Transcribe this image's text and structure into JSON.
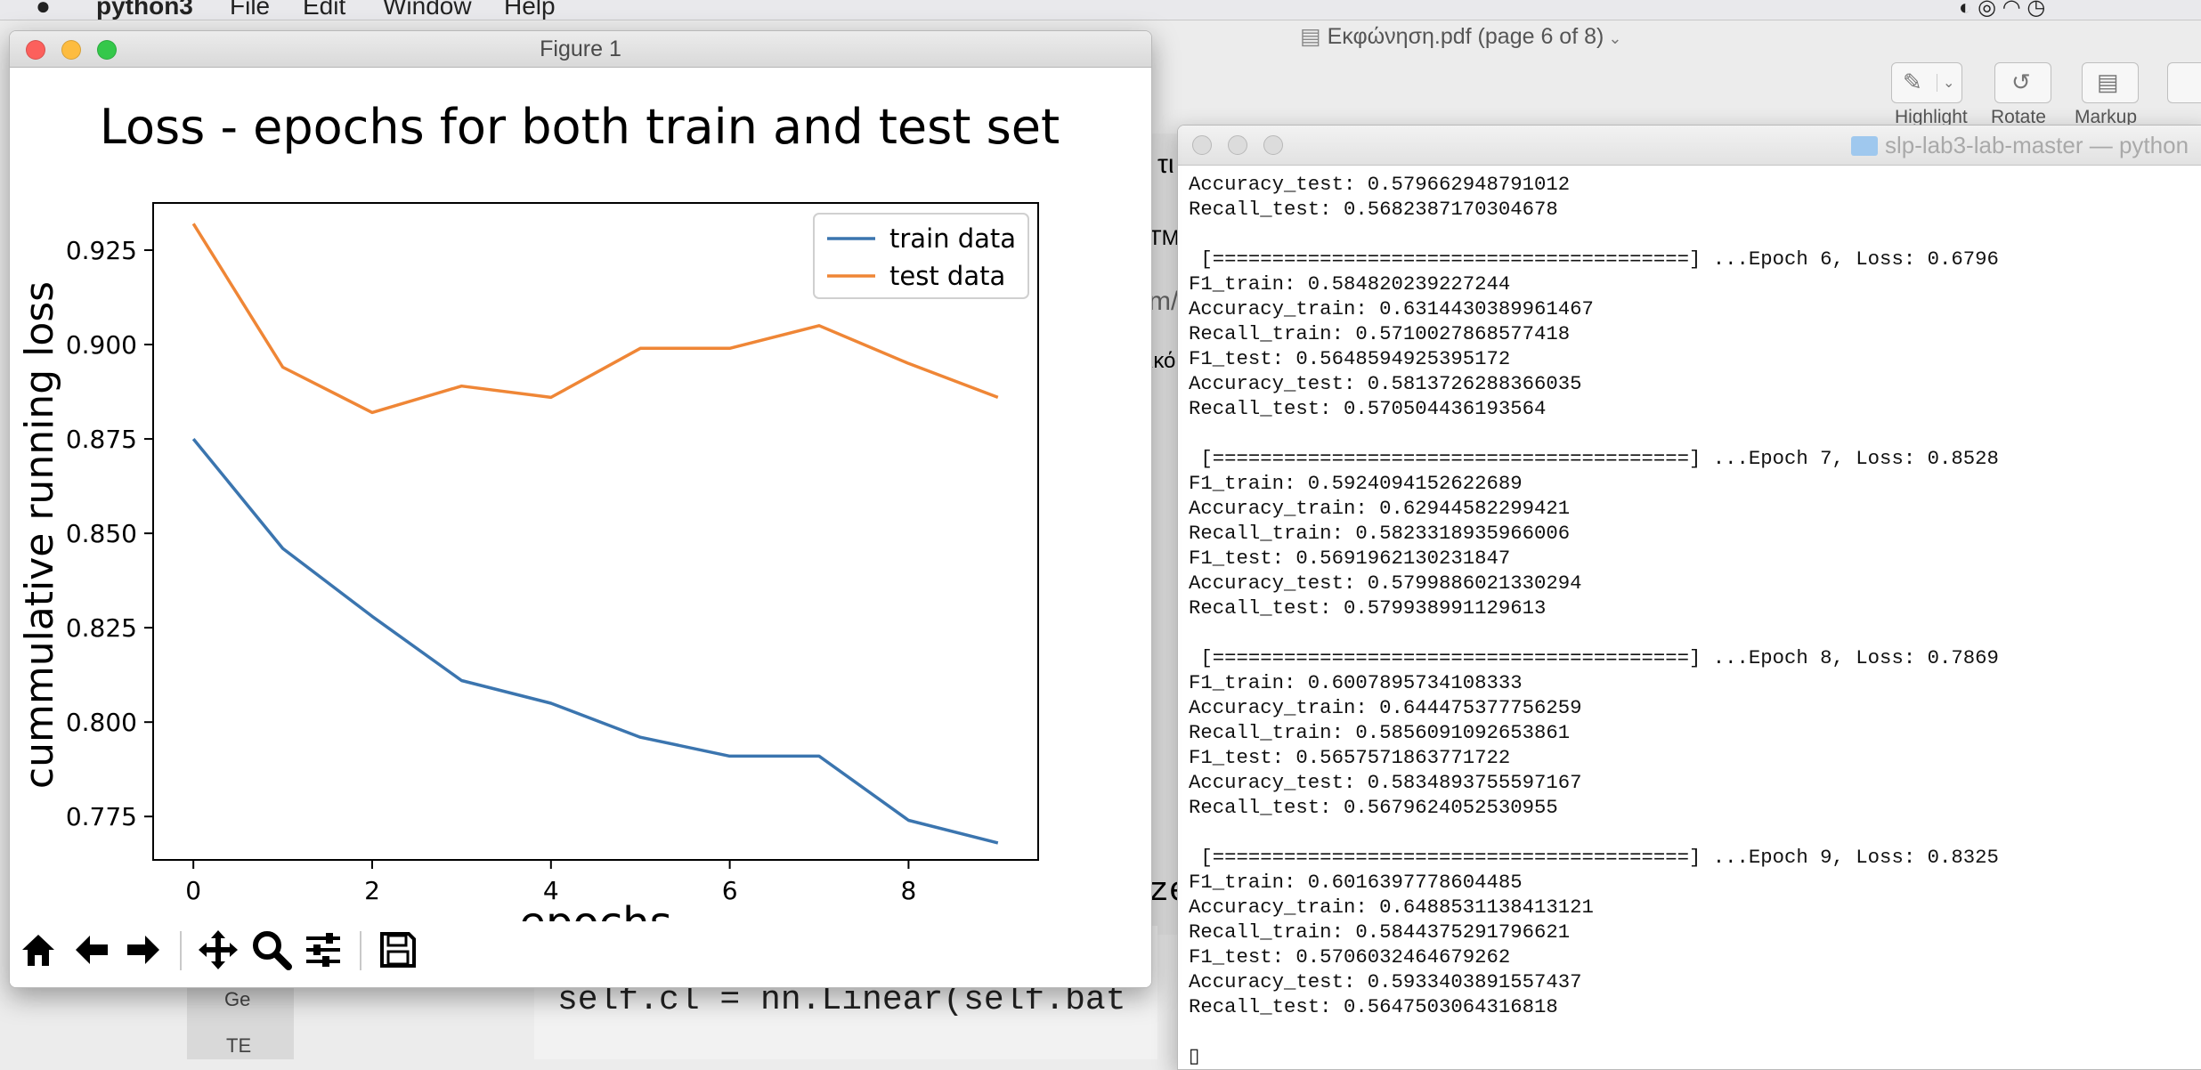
{
  "menubar": {
    "app_name": "python3",
    "menus": [
      "File",
      "Edit",
      "Window",
      "Help"
    ]
  },
  "pdf_viewer": {
    "title": "Εκφώνηση.pdf (page 6 of 8)",
    "toolbar": [
      {
        "label": "Highlight",
        "icon": "highlighter-icon"
      },
      {
        "label": "Rotate",
        "icon": "rotate-icon"
      },
      {
        "label": "Markup",
        "icon": "toolbox-icon"
      }
    ]
  },
  "background_text": {
    "fragments": [
      "τι",
      "TM",
      "m/",
      "ικό",
      "ze",
      "Ge",
      "TE"
    ],
    "code_line": "self.cl = nn.Linear(self.bat"
  },
  "figure_window": {
    "title": "Figure 1",
    "traffic_light_colors": [
      "#fc605c",
      "#fdbc40",
      "#34c84a"
    ],
    "toolbar_icons": [
      "home-icon",
      "back-arrow-icon",
      "forward-arrow-icon",
      "pan-icon",
      "zoom-icon",
      "configure-subplots-icon",
      "save-icon"
    ]
  },
  "chart_data": {
    "type": "line",
    "title": "Loss - epochs for both train and test set",
    "xlabel": "epochs",
    "ylabel": "cummulative running loss",
    "x": [
      0,
      1,
      2,
      3,
      4,
      5,
      6,
      7,
      8,
      9
    ],
    "xticks": [
      "0",
      "2",
      "4",
      "6",
      "8"
    ],
    "yticks": [
      "0.775",
      "0.800",
      "0.825",
      "0.850",
      "0.875",
      "0.900",
      "0.925"
    ],
    "xlim": [
      -0.45,
      9.45
    ],
    "ylim": [
      0.7635,
      0.9375
    ],
    "legend_position": "top-right",
    "grid": false,
    "series": [
      {
        "name": "train data",
        "color": "#3b75af",
        "values": [
          0.875,
          0.846,
          0.828,
          0.811,
          0.805,
          0.796,
          0.791,
          0.791,
          0.774,
          0.768
        ]
      },
      {
        "name": "test data",
        "color": "#ef8636",
        "values": [
          0.932,
          0.894,
          0.882,
          0.889,
          0.886,
          0.899,
          0.899,
          0.905,
          0.895,
          0.886
        ]
      }
    ]
  },
  "terminal": {
    "title": "slp-lab3-lab-master — python",
    "lines": [
      "Accuracy_test: 0.579662948791012",
      "Recall_test: 0.5682387170304678",
      "",
      " [========================================] ...Epoch 6, Loss: 0.6796",
      "F1_train: 0.584820239227244",
      "Accuracy_train: 0.6314430389961467",
      "Recall_train: 0.5710027868577418",
      "F1_test: 0.5648594925395172",
      "Accuracy_test: 0.5813726288366035",
      "Recall_test: 0.570504436193564",
      "",
      " [========================================] ...Epoch 7, Loss: 0.8528",
      "F1_train: 0.5924094152622689",
      "Accuracy_train: 0.62944582299421",
      "Recall_train: 0.5823318935966006",
      "F1_test: 0.5691962130231847",
      "Accuracy_test: 0.5799886021330294",
      "Recall_test: 0.579938991129613",
      "",
      " [========================================] ...Epoch 8, Loss: 0.7869",
      "F1_train: 0.6007895734108333",
      "Accuracy_train: 0.644475377756259",
      "Recall_train: 0.5856091092653861",
      "F1_test: 0.5657571863771722",
      "Accuracy_test: 0.5834893755597167",
      "Recall_test: 0.5679624052530955",
      "",
      " [========================================] ...Epoch 9, Loss: 0.8325",
      "F1_train: 0.6016397778604485",
      "Accuracy_train: 0.6488531138413121",
      "Recall_train: 0.5844375291796621",
      "F1_test: 0.5706032464679262",
      "Accuracy_test: 0.5933403891557437",
      "Recall_test: 0.5647503064316818",
      "",
      "▯"
    ]
  }
}
